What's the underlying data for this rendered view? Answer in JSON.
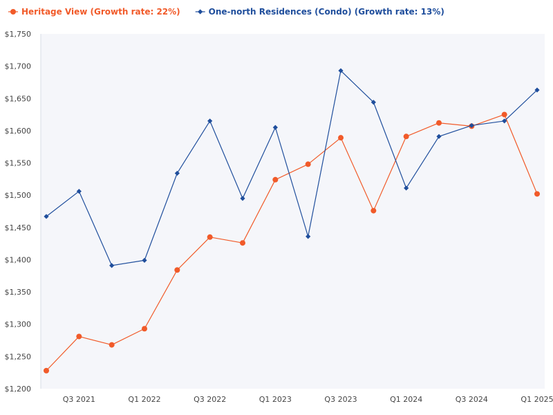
{
  "chart_data": {
    "type": "line",
    "title": "",
    "xlabel": "",
    "ylabel": "",
    "ylim": [
      1200,
      1750
    ],
    "y_ticks": [
      1200,
      1250,
      1300,
      1350,
      1400,
      1450,
      1500,
      1550,
      1600,
      1650,
      1700,
      1750
    ],
    "y_tick_labels": [
      "$1,200",
      "$1,250",
      "$1,300",
      "$1,350",
      "$1,400",
      "$1,450",
      "$1,500",
      "$1,550",
      "$1,600",
      "$1,650",
      "$1,700",
      "$1,750"
    ],
    "categories": [
      "Q2 2021",
      "Q3 2021",
      "Q4 2021",
      "Q1 2022",
      "Q2 2022",
      "Q3 2022",
      "Q4 2022",
      "Q1 2023",
      "Q2 2023",
      "Q3 2023",
      "Q4 2023",
      "Q1 2024",
      "Q2 2024",
      "Q3 2024",
      "Q4 2024",
      "Q1 2025"
    ],
    "x_tick_labels": [
      {
        "index": 1,
        "label": "Q3 2021"
      },
      {
        "index": 3,
        "label": "Q1 2022"
      },
      {
        "index": 5,
        "label": "Q3 2022"
      },
      {
        "index": 7,
        "label": "Q1 2023"
      },
      {
        "index": 9,
        "label": "Q3 2023"
      },
      {
        "index": 11,
        "label": "Q1 2024"
      },
      {
        "index": 13,
        "label": "Q3 2024"
      },
      {
        "index": 15,
        "label": "Q1 2025"
      }
    ],
    "legend_position": "top-left",
    "grid": false,
    "series": [
      {
        "name": "Heritage View (Growth rate: 22%)",
        "color": "#f15a29",
        "marker": "circle",
        "values": [
          1228,
          1281,
          1268,
          1293,
          1384,
          1435,
          1426,
          1524,
          1548,
          1589,
          1476,
          1591,
          1612,
          1607,
          1625,
          1502
        ]
      },
      {
        "name": "One-north Residences (Condo) (Growth rate: 13%)",
        "color": "#1f4e9c",
        "marker": "diamond",
        "values": [
          1467,
          1506,
          1391,
          1399,
          1534,
          1615,
          1495,
          1605,
          1436,
          1693,
          1644,
          1511,
          1591,
          1608,
          1615,
          1663
        ]
      }
    ]
  }
}
